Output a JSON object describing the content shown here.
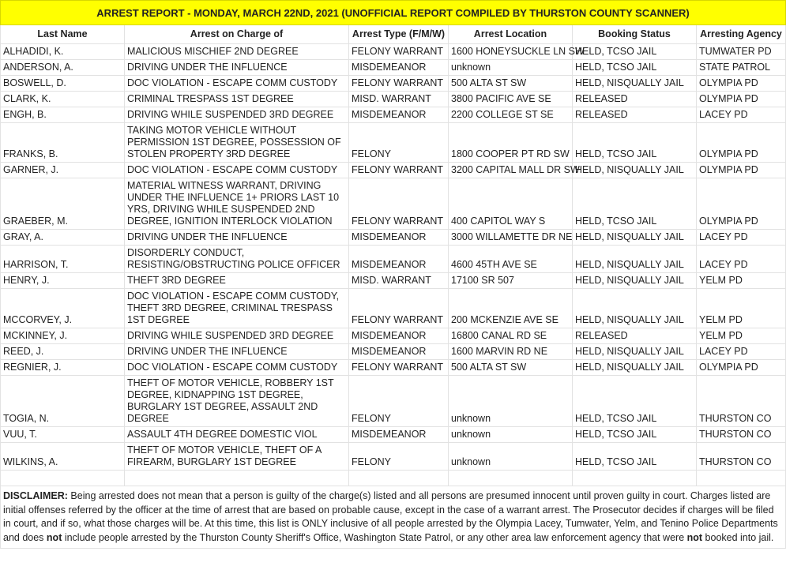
{
  "title": "ARREST REPORT - MONDAY, MARCH 22ND, 2021 (UNOFFICIAL REPORT COMPILED BY THURSTON COUNTY SCANNER)",
  "columns": [
    "Last Name",
    "Arrest on Charge of",
    "Arrest Type (F/M/W)",
    "Arrest Location",
    "Booking Status",
    "Arresting Agency"
  ],
  "rows": [
    [
      "ALHADIDI, K.",
      "MALICIOUS MISCHIEF 2ND DEGREE",
      "FELONY WARRANT",
      "1600 HONEYSUCKLE LN SW",
      "HELD, TCSO JAIL",
      "TUMWATER PD"
    ],
    [
      "ANDERSON, A.",
      "DRIVING UNDER THE INFLUENCE",
      "MISDEMEANOR",
      "unknown",
      "HELD, TCSO JAIL",
      "STATE PATROL"
    ],
    [
      "BOSWELL, D.",
      "DOC VIOLATION - ESCAPE COMM CUSTODY",
      "FELONY WARRANT",
      "500 ALTA ST SW",
      "HELD, NISQUALLY JAIL",
      "OLYMPIA PD"
    ],
    [
      "CLARK, K.",
      "CRIMINAL TRESPASS 1ST DEGREE",
      "MISD. WARRANT",
      "3800 PACIFIC AVE SE",
      "RELEASED",
      "OLYMPIA PD"
    ],
    [
      "ENGH, B.",
      "DRIVING WHILE SUSPENDED 3RD DEGREE",
      "MISDEMEANOR",
      "2200 COLLEGE ST SE",
      "RELEASED",
      "LACEY PD"
    ],
    [
      "FRANKS, B.",
      "TAKING MOTOR VEHICLE WITHOUT PERMISSION 1ST DEGREE, POSSESSION OF STOLEN PROPERTY 3RD DEGREE",
      "FELONY",
      "1800 COOPER PT RD SW",
      "HELD, TCSO JAIL",
      "OLYMPIA PD"
    ],
    [
      "GARNER, J.",
      "DOC VIOLATION - ESCAPE COMM CUSTODY",
      "FELONY WARRANT",
      "3200 CAPITAL MALL DR SW",
      "HELD, NISQUALLY JAIL",
      "OLYMPIA PD"
    ],
    [
      "GRAEBER, M.",
      "MATERIAL WITNESS WARRANT, DRIVING UNDER THE INFLUENCE 1+ PRIORS LAST 10 YRS, DRIVING WHILE SUSPENDED 2ND DEGREE, IGNITION INTERLOCK VIOLATION",
      "FELONY WARRANT",
      "400 CAPITOL WAY S",
      "HELD, TCSO JAIL",
      "OLYMPIA PD"
    ],
    [
      "GRAY, A.",
      "DRIVING UNDER THE INFLUENCE",
      "MISDEMEANOR",
      "3000 WILLAMETTE DR NE",
      "HELD, NISQUALLY JAIL",
      "LACEY PD"
    ],
    [
      "HARRISON, T.",
      "DISORDERLY CONDUCT, RESISTING/OBSTRUCTING POLICE OFFICER",
      "MISDEMEANOR",
      "4600 45TH AVE SE",
      "HELD, NISQUALLY JAIL",
      "LACEY PD"
    ],
    [
      "HENRY, J.",
      "THEFT 3RD DEGREE",
      "MISD. WARRANT",
      "17100 SR 507",
      "HELD, NISQUALLY JAIL",
      "YELM PD"
    ],
    [
      "MCCORVEY, J.",
      "DOC VIOLATION - ESCAPE COMM CUSTODY, THEFT 3RD DEGREE, CRIMINAL TRESPASS 1ST DEGREE",
      "FELONY WARRANT",
      "200 MCKENZIE AVE SE",
      "HELD, NISQUALLY JAIL",
      "YELM PD"
    ],
    [
      "MCKINNEY, J.",
      "DRIVING WHILE SUSPENDED 3RD DEGREE",
      "MISDEMEANOR",
      "16800 CANAL RD SE",
      "RELEASED",
      "YELM PD"
    ],
    [
      "REED, J.",
      "DRIVING UNDER THE INFLUENCE",
      "MISDEMEANOR",
      "1600 MARVIN RD NE",
      "HELD, NISQUALLY JAIL",
      "LACEY PD"
    ],
    [
      "REGNIER, J.",
      "DOC VIOLATION - ESCAPE COMM CUSTODY",
      "FELONY WARRANT",
      "500 ALTA ST SW",
      "HELD, NISQUALLY JAIL",
      "OLYMPIA PD"
    ],
    [
      "TOGIA, N.",
      "THEFT OF MOTOR VEHICLE, ROBBERY 1ST DEGREE, KIDNAPPING 1ST DEGREE, BURGLARY 1ST DEGREE, ASSAULT 2ND DEGREE",
      "FELONY",
      "unknown",
      "HELD, TCSO JAIL",
      "THURSTON CO"
    ],
    [
      "VUU, T.",
      "ASSAULT 4TH DEGREE DOMESTIC VIOL",
      "MISDEMEANOR",
      "unknown",
      "HELD, TCSO JAIL",
      "THURSTON CO"
    ],
    [
      "WILKINS, A.",
      "THEFT OF MOTOR VEHICLE, THEFT OF A FIREARM, BURGLARY 1ST DEGREE",
      "FELONY",
      "unknown",
      "HELD, TCSO JAIL",
      "THURSTON CO"
    ]
  ],
  "disclaimer": {
    "label": "DISCLAIMER:",
    "p1": " Being arrested does not mean that a person is guilty of the charge(s) listed and all persons are presumed innocent until proven guilty in court. Charges listed are initial offenses referred by the officer at the time of arrest that are based on probable cause, except in the case of a warrant arrest. The Prosecutor decides if charges will be filed in court, and if so, what those charges will be. At this time, this list is ONLY inclusive of all people arrested by the Olympia Lacey, Tumwater, Yelm, and Tenino Police Departments and does ",
    "not1": "not",
    "p2": " include people  arrested by the Thurston County Sheriff's Office, Washington State Patrol, or any other area law enforcement agency that were ",
    "not2": "not",
    "p3": " booked into jail."
  },
  "colors": {
    "title_bg": "#ffff00",
    "grid": "#e2e2e2"
  }
}
